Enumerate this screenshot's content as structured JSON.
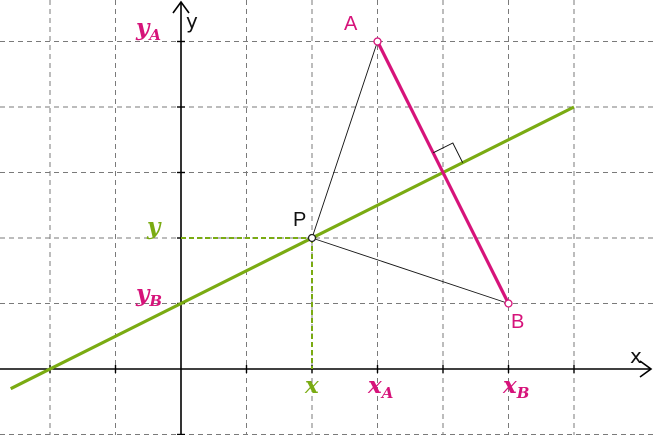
{
  "colors": {
    "grid": "#7a7a7a",
    "axis": "#000000",
    "segment": "#d6137a",
    "bisector": "#7aab12",
    "thin": "#111111",
    "point_fill": "#ffffff"
  },
  "axes": {
    "x_label": "x",
    "y_label": "y"
  },
  "points": {
    "A": {
      "label": "A",
      "x": 3,
      "y": 5
    },
    "B": {
      "label": "B",
      "x": 5,
      "y": 1
    },
    "P": {
      "label": "P",
      "x": 2,
      "y": 2
    }
  },
  "bisector_line": {
    "slope": 0.5,
    "intercept": 1,
    "x_from": -2.6,
    "x_to": 6
  },
  "right_angle_marker": true,
  "tick_labels": {
    "y_A": {
      "base": "y",
      "sub": "A"
    },
    "y_B": {
      "base": "y",
      "sub": "B"
    },
    "y": {
      "base": "y"
    },
    "x": {
      "base": "x"
    },
    "x_A": {
      "base": "x",
      "sub": "A"
    },
    "x_B": {
      "base": "x",
      "sub": "B"
    }
  }
}
